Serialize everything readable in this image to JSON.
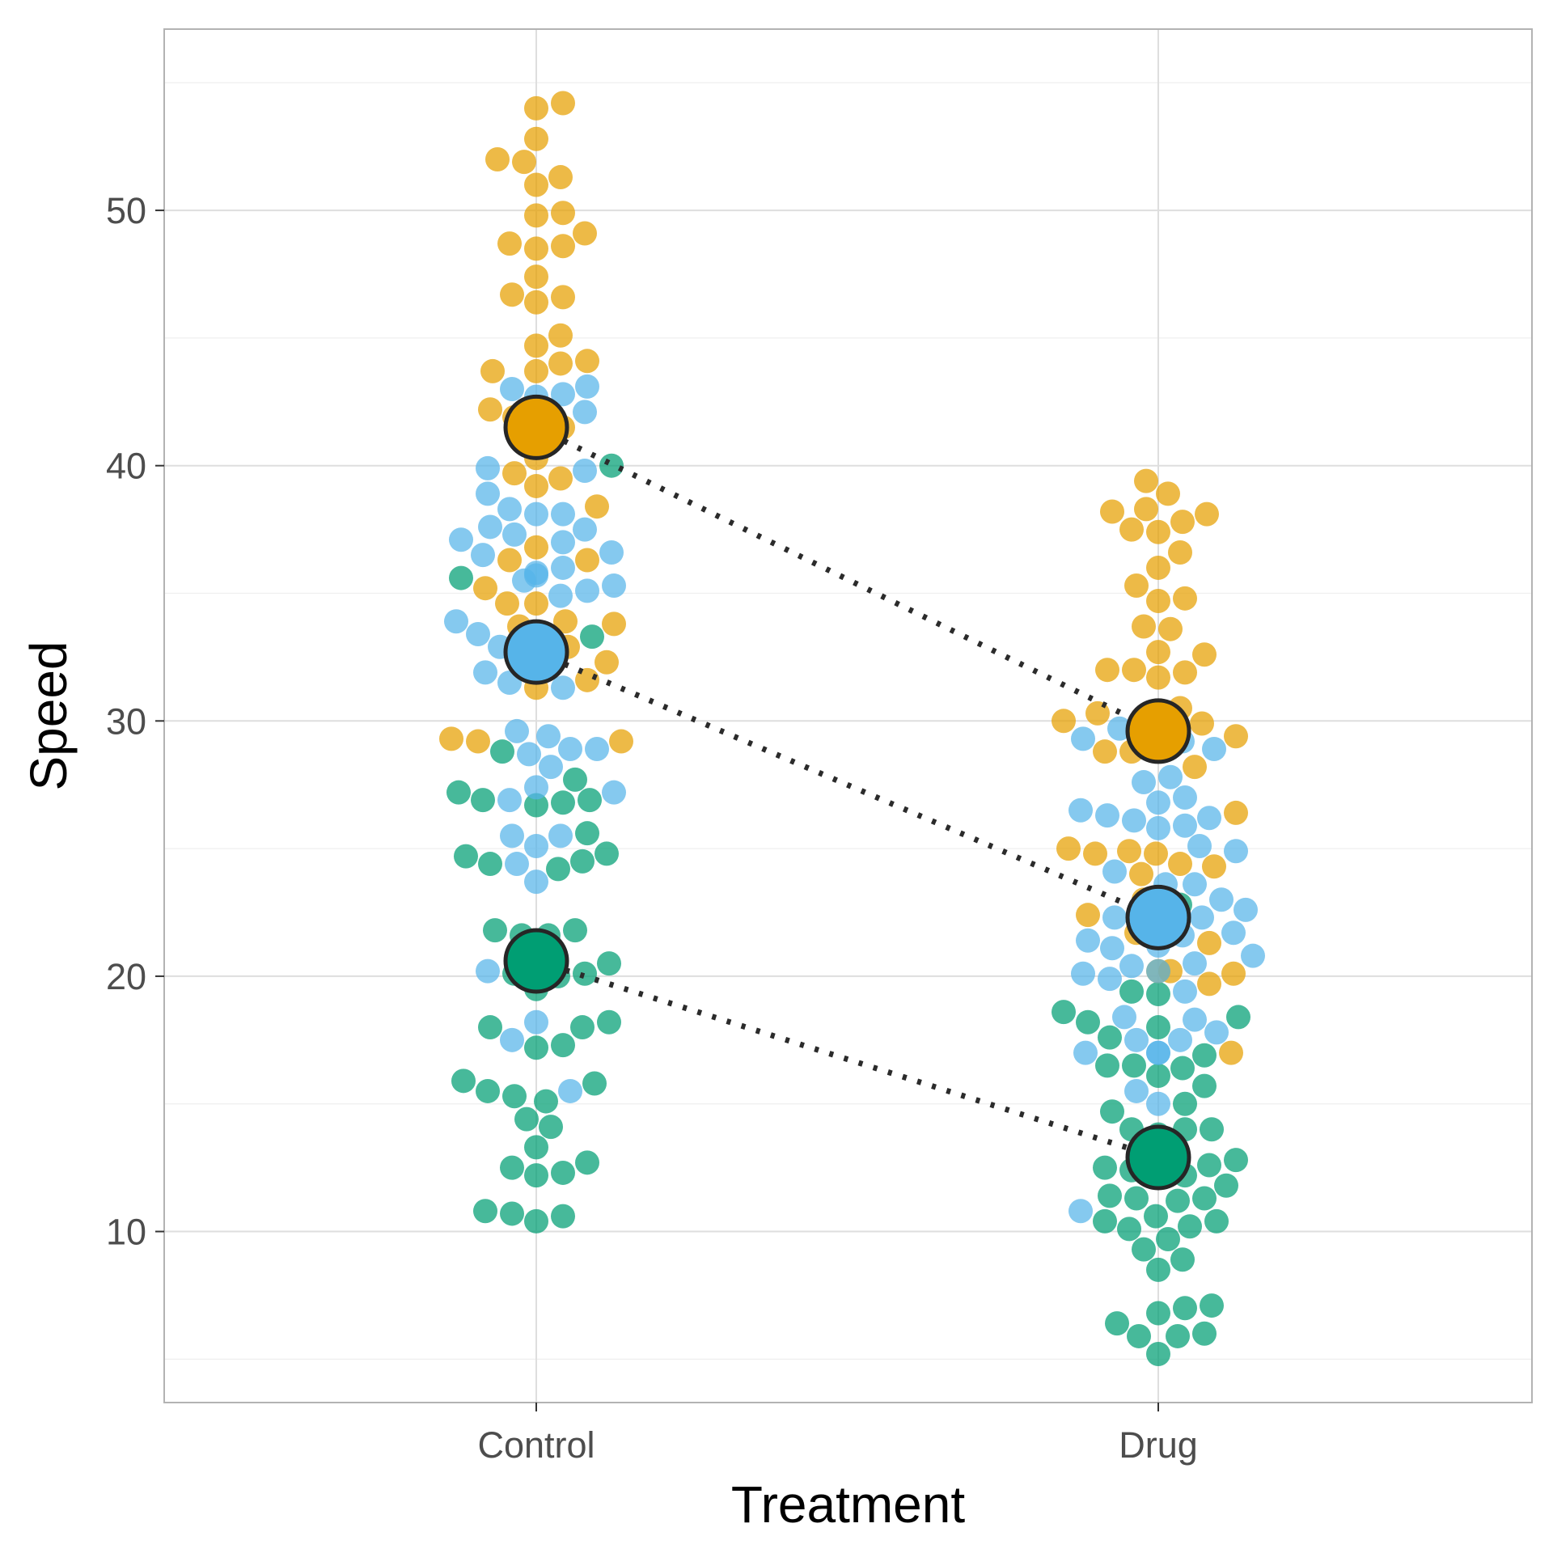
{
  "chart_data": {
    "type": "scatter",
    "subtype": "beeswarm with group means",
    "title": "",
    "xlabel": "Treatment",
    "ylabel": "Speed",
    "categories": [
      "Control",
      "Drug"
    ],
    "ylim": [
      3.3,
      57.1
    ],
    "yticks": [
      10,
      20,
      30,
      40,
      50
    ],
    "grid": true,
    "legend": "none",
    "mean_connector": "dotted",
    "series": [
      {
        "color": "#E69F00",
        "means": [
          41.5,
          29.6
        ],
        "points": {
          "Control": [
            54.2,
            54.0,
            52.8,
            52.0,
            51.9,
            51.3,
            51.0,
            49.9,
            49.8,
            49.1,
            48.7,
            48.6,
            48.5,
            47.4,
            46.7,
            46.6,
            46.4,
            45.1,
            44.7,
            44.1,
            44.0,
            43.7,
            43.7,
            42.2,
            41.9,
            41.5,
            41.4,
            40.3,
            39.7,
            39.5,
            39.2,
            38.4,
            36.8,
            36.3,
            36.3,
            35.2,
            34.6,
            34.6,
            33.9,
            33.8,
            33.7,
            33.3,
            32.9,
            32.3,
            32.2,
            31.6,
            31.3,
            29.3,
            29.2,
            29.2
          ],
          "Drug": [
            39.4,
            38.9,
            38.3,
            38.2,
            38.1,
            37.8,
            37.5,
            37.4,
            36.6,
            36.0,
            35.3,
            34.8,
            34.7,
            33.7,
            33.6,
            32.7,
            32.6,
            32.0,
            32.0,
            31.9,
            31.7,
            30.5,
            30.3,
            30.0,
            29.9,
            29.4,
            28.8,
            28.8,
            28.8,
            28.2,
            26.4,
            25.0,
            24.9,
            24.8,
            24.8,
            24.4,
            24.3,
            24.0,
            23.0,
            22.4,
            21.7,
            21.3,
            20.2,
            20.2,
            20.1,
            19.7,
            17.0
          ]
        }
      },
      {
        "color": "#56B4E9",
        "means": [
          32.7,
          22.3
        ],
        "points": {
          "Control": [
            43.1,
            43.0,
            42.8,
            42.7,
            42.1,
            39.9,
            39.8,
            38.9,
            38.3,
            38.1,
            38.1,
            37.6,
            37.5,
            37.3,
            37.1,
            37.0,
            36.6,
            36.5,
            36.0,
            35.8,
            35.7,
            35.5,
            35.3,
            35.1,
            34.9,
            33.9,
            33.4,
            32.9,
            31.9,
            31.5,
            31.3,
            29.6,
            29.4,
            28.9,
            28.9,
            28.7,
            28.2,
            27.4,
            27.2,
            26.9,
            25.5,
            25.5,
            25.1,
            24.4,
            23.7,
            20.2,
            18.2,
            17.5,
            15.5
          ],
          "Drug": [
            29.9,
            29.7,
            29.5,
            29.4,
            29.3,
            29.2,
            28.9,
            27.8,
            27.6,
            27.0,
            26.8,
            26.5,
            26.3,
            26.2,
            26.1,
            25.9,
            25.8,
            25.1,
            24.9,
            24.1,
            23.6,
            23.6,
            23.0,
            22.6,
            22.3,
            22.3,
            22.2,
            21.7,
            21.6,
            21.4,
            21.2,
            21.1,
            20.8,
            20.5,
            20.4,
            20.2,
            20.1,
            19.9,
            19.4,
            18.4,
            18.3,
            17.8,
            17.5,
            17.5,
            17.0,
            17.0,
            17.0,
            15.5,
            15.0,
            12.2,
            10.8
          ]
        }
      },
      {
        "color": "#009E73",
        "means": [
          20.6,
          12.9
        ],
        "points": {
          "Control": [
            40.0,
            35.6,
            33.3,
            32.6,
            28.8,
            27.7,
            27.2,
            26.9,
            26.9,
            26.8,
            26.7,
            25.6,
            24.8,
            24.7,
            24.5,
            24.4,
            24.2,
            21.8,
            21.8,
            21.6,
            21.6,
            20.7,
            20.5,
            20.1,
            20.1,
            20.0,
            19.5,
            18.2,
            18.0,
            18.0,
            17.3,
            17.2,
            15.9,
            15.8,
            15.5,
            15.3,
            15.1,
            14.4,
            14.1,
            13.3,
            12.7,
            12.5,
            12.3,
            12.2,
            10.8,
            10.7,
            10.6,
            10.4
          ],
          "Drug": [
            22.8,
            19.4,
            19.3,
            18.6,
            18.4,
            18.2,
            18.0,
            17.6,
            16.9,
            16.5,
            16.5,
            16.4,
            16.1,
            15.7,
            15.0,
            14.7,
            14.0,
            14.0,
            14.0,
            13.8,
            12.8,
            12.6,
            12.5,
            12.4,
            12.2,
            11.8,
            11.4,
            11.3,
            11.3,
            11.2,
            10.6,
            10.4,
            10.4,
            10.2,
            10.1,
            9.7,
            9.3,
            8.9,
            8.5,
            7.1,
            7.0,
            6.8,
            6.4,
            6.0,
            5.9,
            5.9,
            5.2
          ]
        }
      }
    ]
  }
}
